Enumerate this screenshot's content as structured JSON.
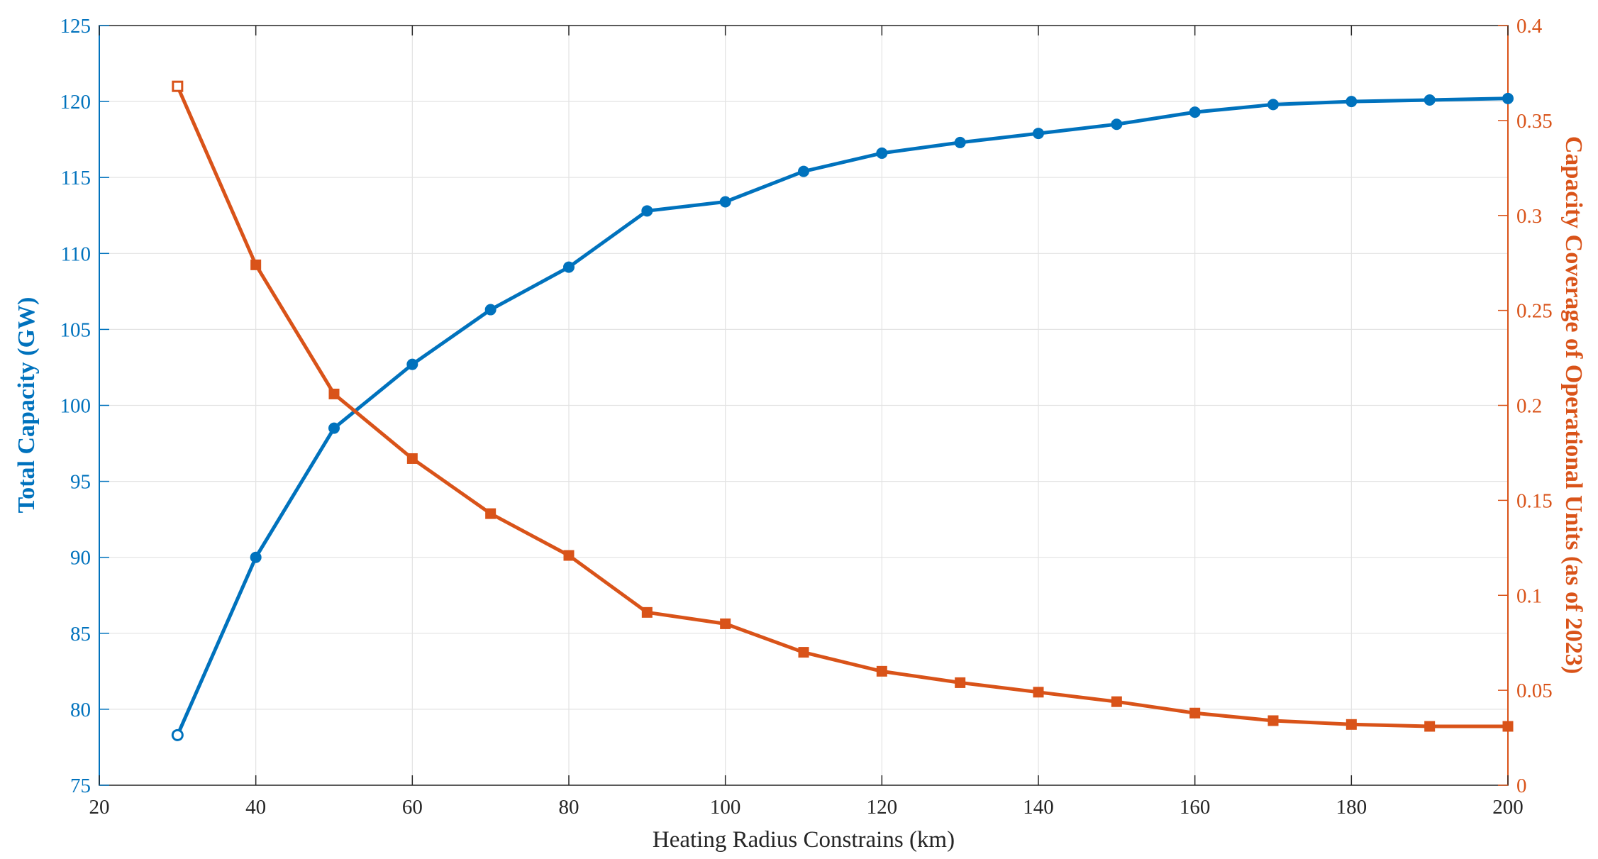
{
  "chart_data": {
    "type": "line",
    "title": "",
    "xlabel": "Heating Radius Constrains (km)",
    "ylabel_left": "Total Capacity (GW)",
    "ylabel_right": "Capacity Coverage of Operational Units (as of 2023)",
    "xlim": [
      20,
      200
    ],
    "ylim_left": [
      75,
      125
    ],
    "ylim_right": [
      0,
      0.4
    ],
    "xticks": [
      "20",
      "40",
      "60",
      "80",
      "100",
      "120",
      "140",
      "160",
      "180",
      "200"
    ],
    "yticks_left": [
      "75",
      "80",
      "85",
      "90",
      "95",
      "100",
      "105",
      "110",
      "115",
      "120",
      "125"
    ],
    "yticks_right": [
      "0",
      "0.05",
      "0.1",
      "0.15",
      "0.2",
      "0.25",
      "0.3",
      "0.35",
      "0.4"
    ],
    "grid": true,
    "x": [
      30,
      40,
      50,
      60,
      70,
      80,
      90,
      100,
      110,
      120,
      130,
      140,
      150,
      160,
      170,
      180,
      190,
      200
    ],
    "series": [
      {
        "axis": "left",
        "color": "#0072BD",
        "marker": "circle",
        "values": [
          78.3,
          90.0,
          98.5,
          102.7,
          106.3,
          109.1,
          112.8,
          113.4,
          115.4,
          116.6,
          117.3,
          117.9,
          118.5,
          119.3,
          119.8,
          120.0,
          120.1,
          120.2
        ]
      },
      {
        "axis": "right",
        "color": "#D95319",
        "marker": "square",
        "values": [
          0.368,
          0.274,
          0.206,
          0.172,
          0.143,
          0.121,
          0.091,
          0.085,
          0.07,
          0.06,
          0.054,
          0.049,
          0.044,
          0.038,
          0.034,
          0.032,
          0.031,
          0.031
        ]
      }
    ]
  }
}
